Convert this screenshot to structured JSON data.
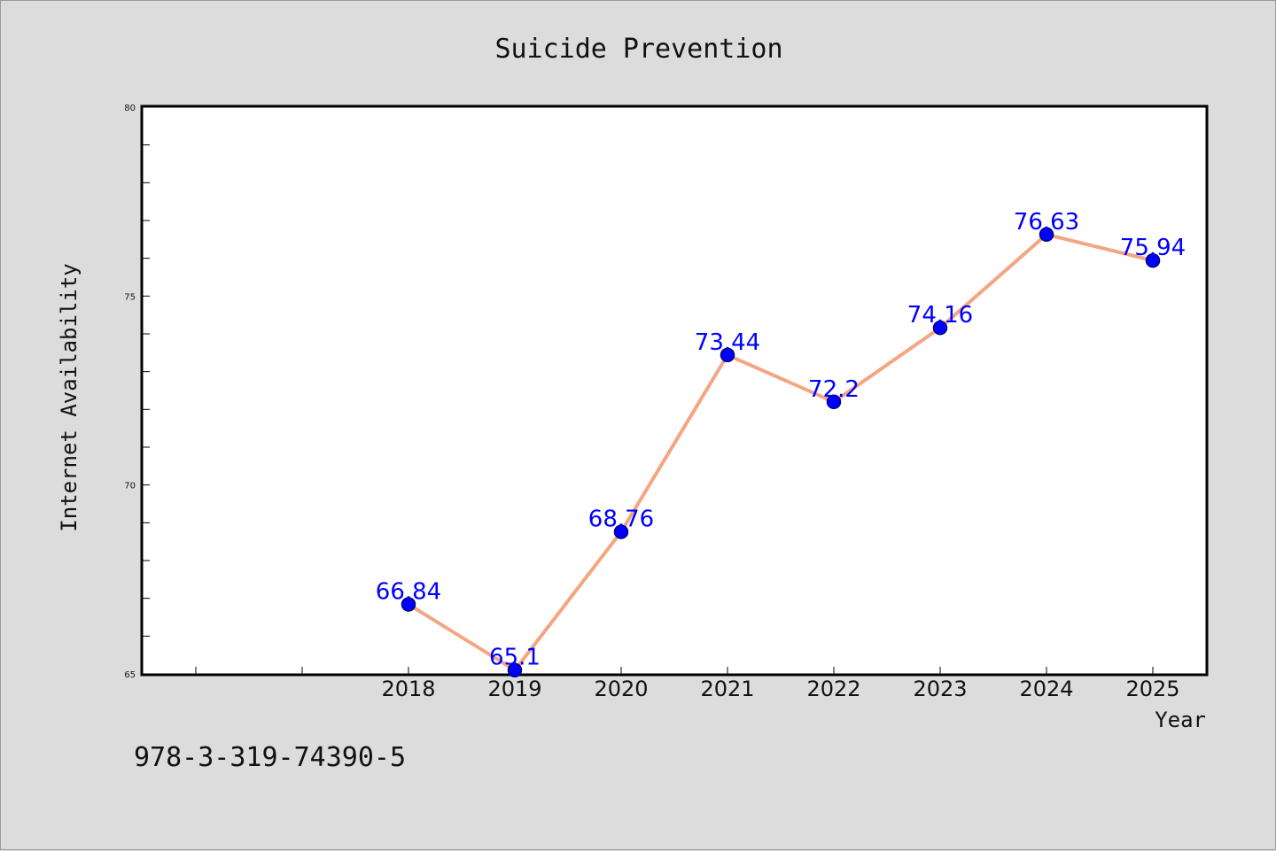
{
  "colors": {
    "background": "#dcdcdc",
    "plot_background": "#ffffff",
    "line": "#f4a582",
    "marker": "#0000ff",
    "marker_edge": "#000080",
    "data_label": "#0000ff"
  },
  "footer_text": "978-3-319-74390-5",
  "chart_data": {
    "type": "line",
    "title": "Suicide Prevention",
    "xlabel": "Year",
    "ylabel": "Internet Availability",
    "x": [
      "2018",
      "2019",
      "2020",
      "2021",
      "2022",
      "2023",
      "2024",
      "2025"
    ],
    "x_numeric": [
      2018,
      2019,
      2020,
      2021,
      2022,
      2023,
      2024,
      2025
    ],
    "series": [
      {
        "values": [
          66.84,
          65.1,
          68.76,
          73.44,
          72.2,
          74.16,
          76.63,
          75.94
        ],
        "data_labels": [
          "66.84",
          "65.1",
          "68.76",
          "73.44",
          "72.2",
          "74.16",
          "76.63",
          "75.94"
        ]
      }
    ],
    "xlim": [
      2015.5,
      2025.5
    ],
    "ylim": [
      65,
      80
    ],
    "yticks": [
      "65",
      "70",
      "75",
      "80"
    ],
    "ytick_values": [
      65,
      70,
      75,
      80
    ],
    "grid": false,
    "legend": "none"
  }
}
